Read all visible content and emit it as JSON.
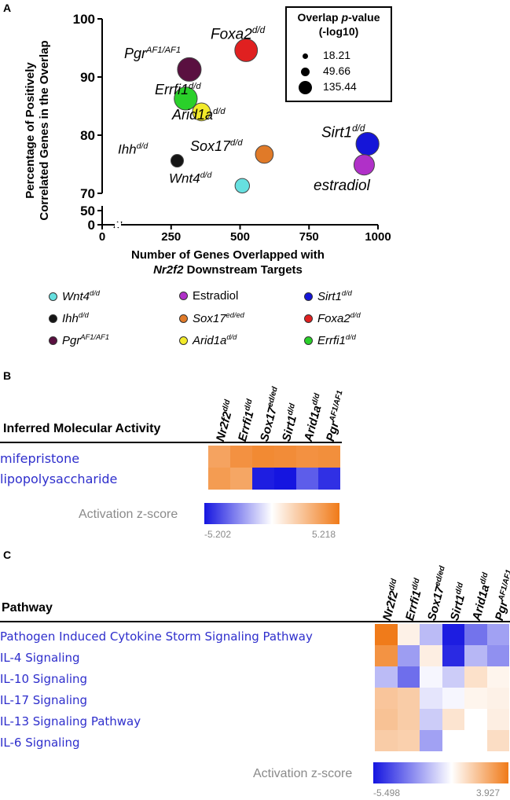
{
  "panels": {
    "a": "A",
    "b": "B",
    "c": "C"
  },
  "chart_data": [
    {
      "type": "scatter",
      "ylabel_line1": "Percentage of Positively",
      "ylabel_line2": "Correlated Genes in the Overlap",
      "xlabel_line1": "Number of Genes Overlapped with",
      "xlabel_line2_italic": "Nr2f2",
      "xlabel_line2_rest": " Downstream Targets",
      "x_ticks": [
        "0",
        "250",
        "500",
        "750",
        "1000"
      ],
      "y_ticks_upper": [
        "70",
        "80",
        "90",
        "100"
      ],
      "y_ticks_lower": [
        "0",
        "50"
      ],
      "xlim": [
        0,
        1000
      ],
      "ylim_upper": [
        70,
        100
      ],
      "size_legend": {
        "title_line1_pre": "Overlap ",
        "title_line1_italic": "p",
        "title_line1_post": "-value",
        "title_line2": "(-log10)",
        "entries": [
          "18.21",
          "49.66",
          "135.44"
        ],
        "sizes": [
          18.21,
          49.66,
          135.44
        ]
      },
      "points": [
        {
          "label": "Foxa2",
          "sup": "d/d",
          "x": 522,
          "y": 94.6,
          "size": 120,
          "color": "#e02020"
        },
        {
          "label": "Pgr",
          "sup": "AF1/AF1",
          "x": 316,
          "y": 91.3,
          "size": 135,
          "color": "#5a1040"
        },
        {
          "label": "Errfi1",
          "sup": "d/d",
          "x": 303,
          "y": 86.3,
          "size": 125,
          "color": "#2ad02a"
        },
        {
          "label": "Arid1a",
          "sup": "d/d",
          "x": 360,
          "y": 84.0,
          "size": 60,
          "color": "#f2ea2a"
        },
        {
          "label": "Ihh",
          "sup": "d/d",
          "x": 272,
          "y": 75.6,
          "size": 18,
          "color": "#151515"
        },
        {
          "label": "Sox17",
          "sup": "d/d",
          "x": 588,
          "y": 76.7,
          "size": 60,
          "color": "#e07a28"
        },
        {
          "label": "Wnt4",
          "sup": "d/d",
          "x": 508,
          "y": 71.3,
          "size": 30,
          "color": "#66e0e0"
        },
        {
          "label": "Sirt1",
          "sup": "d/d",
          "x": 962,
          "y": 78.5,
          "size": 125,
          "color": "#1515d8"
        },
        {
          "label": "estradiol",
          "sup": "",
          "x": 950,
          "y": 74.9,
          "size": 90,
          "color": "#b030c8"
        }
      ],
      "legend": [
        {
          "label": "Wnt4",
          "sup": "d/d",
          "color": "#66e0e0",
          "italic": true
        },
        {
          "label": "Estradiol",
          "sup": "",
          "color": "#b030c8",
          "italic": false
        },
        {
          "label": "Sirt1",
          "sup": "d/d",
          "color": "#1515d8",
          "italic": true
        },
        {
          "label": "Ihh",
          "sup": "d/d",
          "color": "#151515",
          "italic": true
        },
        {
          "label": "Sox17",
          "sup": "ed/ed",
          "color": "#e07a28",
          "italic": true
        },
        {
          "label": "Foxa2",
          "sup": "d/d",
          "color": "#e02020",
          "italic": true
        },
        {
          "label": "Pgr",
          "sup": "AF1/AF1",
          "color": "#5a1040",
          "italic": true
        },
        {
          "label": "Arid1a",
          "sup": "d/d",
          "color": "#f2ea2a",
          "italic": true
        },
        {
          "label": "Errfi1",
          "sup": "d/d",
          "color": "#2ad02a",
          "italic": true
        }
      ]
    },
    {
      "type": "heatmap",
      "row_header": "Inferred Molecular Activity",
      "columns": [
        {
          "name": "Nr2f2",
          "sup": "d/d"
        },
        {
          "name": "Errfi1",
          "sup": "d/d"
        },
        {
          "name": "Sox17",
          "sup": "ed/ed"
        },
        {
          "name": "Sirt1",
          "sup": "d/d"
        },
        {
          "name": "Arid1a",
          "sup": "d/d"
        },
        {
          "name": "Pgr",
          "sup": "AF1/AF1"
        }
      ],
      "rows": [
        "mifepristone",
        "lipopolysaccharide"
      ],
      "values": [
        [
          3.6,
          4.3,
          4.6,
          4.5,
          4.3,
          4.4
        ],
        [
          3.9,
          3.5,
          -5.0,
          -5.2,
          -3.6,
          -4.6
        ]
      ],
      "scale_label": "Activation z-score",
      "scale_min": "-5.202",
      "scale_max": "5.218",
      "vmin": -5.202,
      "vmax": 5.218
    },
    {
      "type": "heatmap",
      "row_header": "Pathway",
      "columns": [
        {
          "name": "Nr2f2",
          "sup": "d/d"
        },
        {
          "name": "Errfi1",
          "sup": "d/d"
        },
        {
          "name": "Sox17",
          "sup": "ed/ed"
        },
        {
          "name": "Sirt1",
          "sup": "d/d"
        },
        {
          "name": "Arid1a",
          "sup": "d/d"
        },
        {
          "name": "Pgr",
          "sup": "AF1/AF1"
        }
      ],
      "rows": [
        "Pathogen Induced Cytokine Storm Signaling Pathway",
        "IL-4 Signaling",
        "IL-10 Signaling",
        "IL-17 Signaling",
        "IL-13 Signaling Pathway",
        "IL-6 Signaling"
      ],
      "values": [
        [
          3.9,
          0.4,
          -1.6,
          -5.3,
          -3.3,
          -2.2
        ],
        [
          3.2,
          -2.3,
          0.5,
          -5.0,
          -1.7,
          -2.6
        ],
        [
          -1.6,
          -3.4,
          -0.2,
          -1.2,
          0.9,
          0.3
        ],
        [
          1.7,
          1.5,
          -0.6,
          -0.2,
          0.3,
          0.4
        ],
        [
          1.8,
          1.5,
          -1.2,
          0.8,
          0.0,
          0.5
        ],
        [
          1.5,
          1.4,
          -2.2,
          0.0,
          0.0,
          1.0
        ]
      ],
      "scale_label": "Activation z-score",
      "scale_min": "-5.498",
      "scale_max": "3.927",
      "vmin": -5.498,
      "vmax": 3.927
    }
  ]
}
